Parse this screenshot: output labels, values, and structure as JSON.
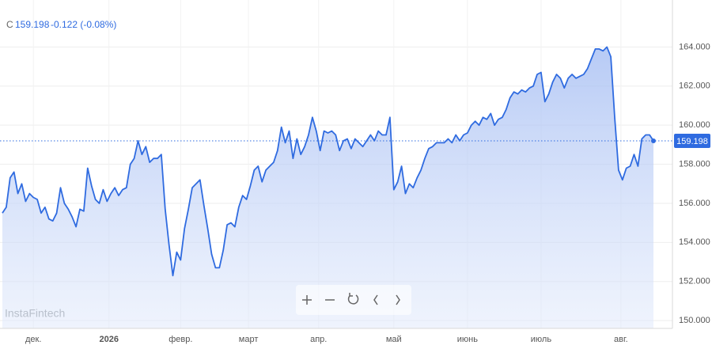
{
  "header": {
    "symbol": "C",
    "price": "159.198",
    "change": "-0.122 (-0.08%)"
  },
  "watermark": "InstaFintech",
  "chart_data": {
    "type": "area",
    "color": "#2f6be0",
    "grid": true,
    "values": [
      155.5,
      155.8,
      157.3,
      157.6,
      156.5,
      157.0,
      156.1,
      156.5,
      156.3,
      156.2,
      155.5,
      155.8,
      155.2,
      155.1,
      155.5,
      156.8,
      156.0,
      155.7,
      155.3,
      154.8,
      155.7,
      155.6,
      157.8,
      156.9,
      156.2,
      156.0,
      156.7,
      156.1,
      156.5,
      156.8,
      156.4,
      156.7,
      156.8,
      158.0,
      158.3,
      159.2,
      158.5,
      158.9,
      158.1,
      158.3,
      158.3,
      158.5,
      155.7,
      153.9,
      152.3,
      153.5,
      153.1,
      154.7,
      155.7,
      156.8,
      157.0,
      157.2,
      155.9,
      154.7,
      153.4,
      152.7,
      152.7,
      153.6,
      154.9,
      155.0,
      154.8,
      155.8,
      156.4,
      156.2,
      156.9,
      157.7,
      157.9,
      157.1,
      157.7,
      157.9,
      158.1,
      158.7,
      159.9,
      159.1,
      159.7,
      158.3,
      159.3,
      158.5,
      158.9,
      159.5,
      160.4,
      159.7,
      158.7,
      159.7,
      159.6,
      159.7,
      159.5,
      158.7,
      159.2,
      159.3,
      158.8,
      159.3,
      159.1,
      158.9,
      159.2,
      159.5,
      159.2,
      159.7,
      159.5,
      159.5,
      160.4,
      156.7,
      157.1,
      157.9,
      156.5,
      157.0,
      156.8,
      157.3,
      157.7,
      158.3,
      158.8,
      158.9,
      159.1,
      159.1,
      159.1,
      159.3,
      159.1,
      159.5,
      159.2,
      159.5,
      159.6,
      160.0,
      160.2,
      160.0,
      160.4,
      160.3,
      160.6,
      160.0,
      160.3,
      160.4,
      160.8,
      161.4,
      161.7,
      161.6,
      161.8,
      161.7,
      161.9,
      162.0,
      162.6,
      162.7,
      161.2,
      161.6,
      162.2,
      162.6,
      162.4,
      161.9,
      162.4,
      162.6,
      162.4,
      162.5,
      162.6,
      162.9,
      163.4,
      163.9,
      163.9,
      163.8,
      164.0,
      163.5,
      160.4,
      157.7,
      157.2,
      157.8,
      157.9,
      158.5,
      157.9,
      159.3,
      159.5,
      159.5,
      159.198
    ],
    "xlim": [
      0,
      168
    ],
    "xticks": [
      {
        "value": 8,
        "label": "дек."
      },
      {
        "value": 27.5,
        "label": "2026"
      },
      {
        "value": 46,
        "label": "февр."
      },
      {
        "value": 63.5,
        "label": "март"
      },
      {
        "value": 81.6,
        "label": "апр."
      },
      {
        "value": 101,
        "label": "май"
      },
      {
        "value": 120,
        "label": "июнь"
      },
      {
        "value": 139,
        "label": "июль"
      },
      {
        "value": 159.6,
        "label": "авг."
      }
    ],
    "ylim": [
      149.6,
      166.0
    ],
    "yticks": [
      {
        "value": 150,
        "label": "150.000"
      },
      {
        "value": 152,
        "label": "152.000"
      },
      {
        "value": 154,
        "label": "154.000"
      },
      {
        "value": 156,
        "label": "156.000"
      },
      {
        "value": 158,
        "label": "158.000"
      },
      {
        "value": 160,
        "label": "160.000"
      },
      {
        "value": 162,
        "label": "162.000"
      },
      {
        "value": 164,
        "label": "164.000"
      }
    ]
  }
}
